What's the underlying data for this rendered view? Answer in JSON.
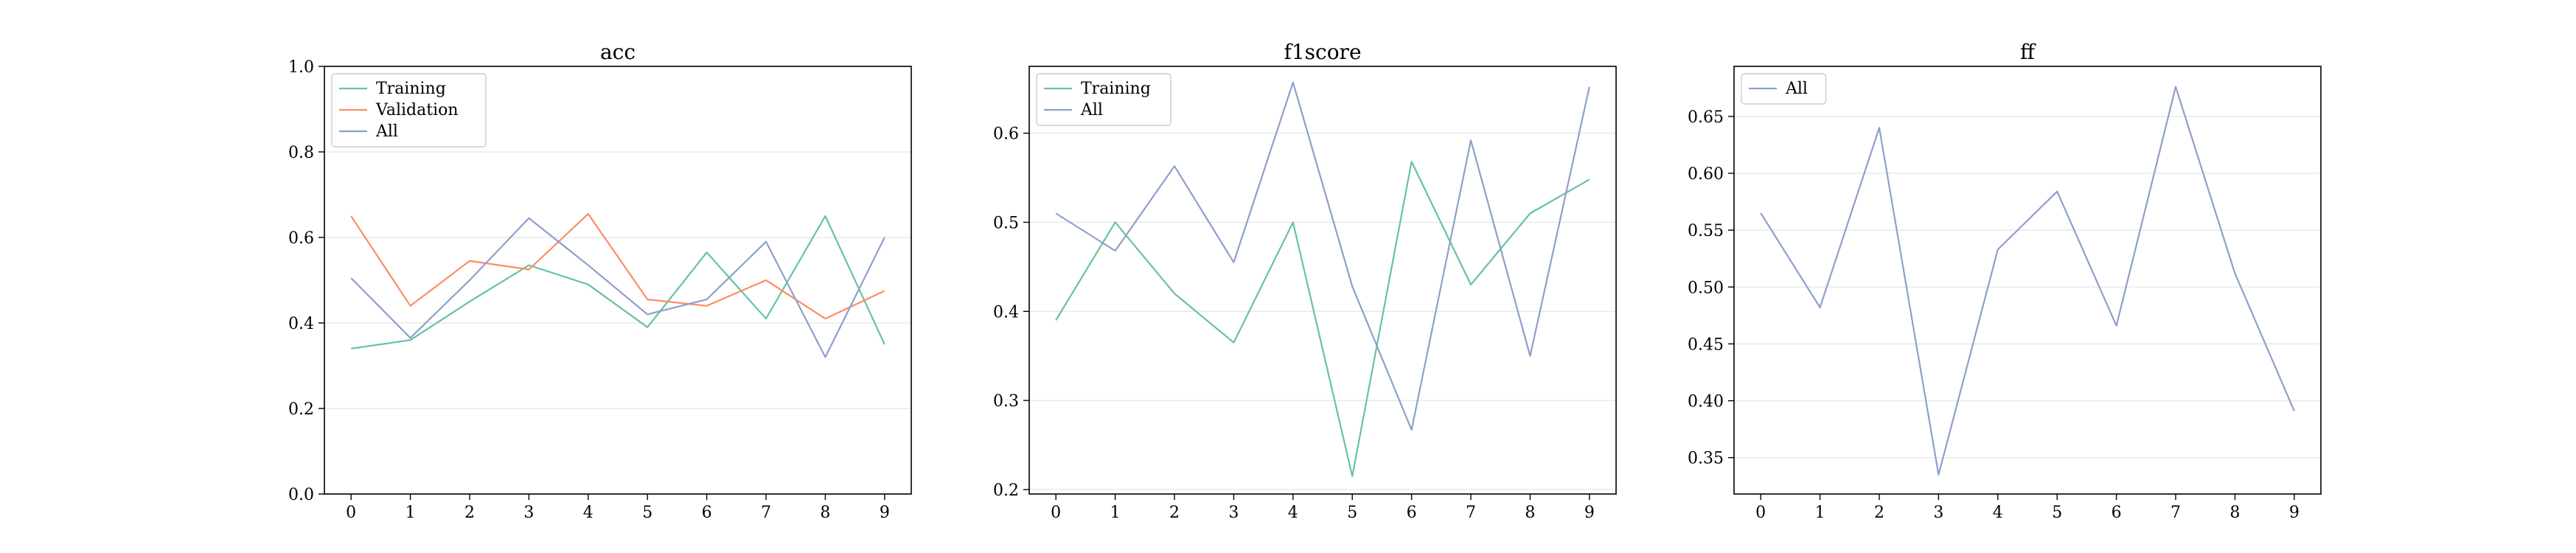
{
  "colors": {
    "Training": "#66c2a5",
    "Validation": "#fc8d62",
    "All": "#8da0cb"
  },
  "chart_data": [
    {
      "type": "line",
      "title": "acc",
      "x": [
        0,
        1,
        2,
        3,
        4,
        5,
        6,
        7,
        8,
        9
      ],
      "ylim": [
        0.0,
        1.0
      ],
      "yticks": [
        0.0,
        0.2,
        0.4,
        0.6,
        0.8,
        1.0
      ],
      "ytick_labels": [
        "0.0",
        "0.2",
        "0.4",
        "0.6",
        "0.8",
        "1.0"
      ],
      "grid": "horizontal",
      "legend": "upper-left",
      "series": [
        {
          "name": "Training",
          "values": [
            0.34,
            0.36,
            0.45,
            0.535,
            0.49,
            0.39,
            0.565,
            0.41,
            0.65,
            0.35
          ]
        },
        {
          "name": "Validation",
          "values": [
            0.65,
            0.44,
            0.545,
            0.525,
            0.655,
            0.455,
            0.44,
            0.5,
            0.41,
            0.475
          ]
        },
        {
          "name": "All",
          "values": [
            0.505,
            0.365,
            0.5,
            0.645,
            0.535,
            0.42,
            0.455,
            0.59,
            0.32,
            0.6
          ]
        }
      ]
    },
    {
      "type": "line",
      "title": "f1score",
      "x": [
        0,
        1,
        2,
        3,
        4,
        5,
        6,
        7,
        8,
        9
      ],
      "ylim": [
        0.195,
        0.675
      ],
      "yticks": [
        0.2,
        0.3,
        0.4,
        0.5,
        0.6
      ],
      "ytick_labels": [
        "0.2",
        "0.3",
        "0.4",
        "0.5",
        "0.6"
      ],
      "grid": "horizontal",
      "legend": "upper-left",
      "series": [
        {
          "name": "Training",
          "values": [
            0.39,
            0.5,
            0.42,
            0.365,
            0.5,
            0.215,
            0.568,
            0.43,
            0.51,
            0.548
          ]
        },
        {
          "name": "All",
          "values": [
            0.51,
            0.468,
            0.563,
            0.455,
            0.657,
            0.428,
            0.267,
            0.592,
            0.35,
            0.652
          ]
        }
      ]
    },
    {
      "type": "line",
      "title": "ff",
      "x": [
        0,
        1,
        2,
        3,
        4,
        5,
        6,
        7,
        8,
        9
      ],
      "ylim": [
        0.318,
        0.694
      ],
      "yticks": [
        0.35,
        0.4,
        0.45,
        0.5,
        0.55,
        0.6,
        0.65
      ],
      "ytick_labels": [
        "0.35",
        "0.40",
        "0.45",
        "0.50",
        "0.55",
        "0.60",
        "0.65"
      ],
      "grid": "horizontal",
      "legend": "upper-left",
      "series": [
        {
          "name": "All",
          "values": [
            0.565,
            0.482,
            0.64,
            0.335,
            0.533,
            0.584,
            0.466,
            0.676,
            0.512,
            0.391
          ]
        }
      ]
    }
  ]
}
